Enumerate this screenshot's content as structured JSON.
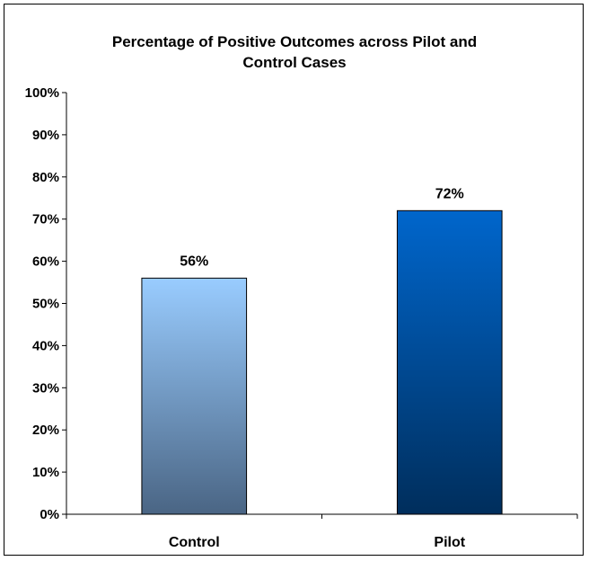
{
  "chart_data": {
    "type": "bar",
    "title_lines": [
      "Percentage of Positive Outcomes across Pilot and",
      "Control Cases"
    ],
    "categories": [
      "Control",
      "Pilot"
    ],
    "values": [
      56,
      72
    ],
    "data_labels": [
      "56%",
      "72%"
    ],
    "y_tick_labels": [
      "0%",
      "10%",
      "20%",
      "30%",
      "40%",
      "50%",
      "60%",
      "70%",
      "80%",
      "90%",
      "100%"
    ],
    "ylim": [
      0,
      100
    ],
    "grid": false,
    "legend": "none",
    "bar_colors": [
      {
        "top": "#99CCFF",
        "bottom": "#4A6584"
      },
      {
        "top": "#0066CC",
        "bottom": "#002E5C"
      }
    ]
  }
}
